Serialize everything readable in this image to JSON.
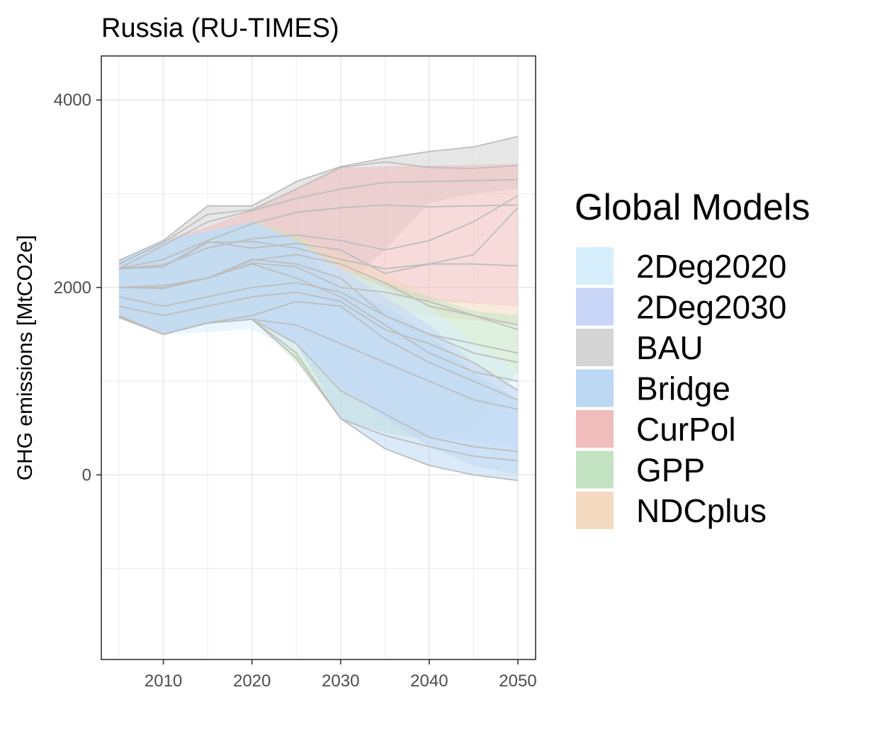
{
  "chart_data": {
    "type": "area",
    "title": "Russia (RU-TIMES)",
    "xlabel": "",
    "ylabel": "GHG emissions [MtCO2e]",
    "xlim": [
      2003,
      2052
    ],
    "ylim": [
      -1970,
      4470
    ],
    "x_ticks": [
      2010,
      2020,
      2030,
      2040,
      2050
    ],
    "y_ticks": [
      0,
      2000,
      4000
    ],
    "grid": true,
    "legend_title": "Global Models",
    "legend_position": "right",
    "colors": {
      "2Deg2020": "#d7eefc",
      "2Deg2030": "#c9d6f7",
      "BAU": "#d4d4d4",
      "Bridge": "#bcd8f2",
      "CurPol": "#f0bcbc",
      "GPP": "#c3e3c3",
      "NDCplus": "#f2d9bf"
    },
    "series": [
      {
        "name": "BAU",
        "color": "#d4d4d4",
        "x": [
          2005,
          2010,
          2015,
          2020,
          2025,
          2030,
          2035,
          2040,
          2045,
          2050
        ],
        "upper": [
          2290,
          2500,
          2870,
          2870,
          3130,
          3290,
          3380,
          3450,
          3500,
          3610
        ],
        "lower": [
          1680,
          1500,
          1620,
          1660,
          1860,
          1960,
          2400,
          2900,
          3000,
          3050
        ]
      },
      {
        "name": "CurPol",
        "color": "#f0bcbc",
        "x": [
          2005,
          2010,
          2015,
          2020,
          2025,
          2030,
          2035,
          2040,
          2045,
          2050
        ],
        "upper": [
          2290,
          2500,
          2650,
          2820,
          3050,
          3280,
          3290,
          3300,
          3310,
          3320
        ],
        "lower": [
          1680,
          1500,
          1620,
          1660,
          1860,
          1960,
          1900,
          1860,
          1830,
          1800
        ]
      },
      {
        "name": "NDCplus",
        "color": "#f2d9bf",
        "x": [
          2005,
          2010,
          2015,
          2020,
          2025,
          2030,
          2035,
          2040,
          2045,
          2050
        ],
        "upper": [
          2290,
          2500,
          2600,
          2700,
          2550,
          2350,
          2150,
          1900,
          1850,
          1800
        ],
        "lower": [
          1680,
          1500,
          1620,
          1660,
          1860,
          1900,
          1780,
          1700,
          1650,
          1600
        ]
      },
      {
        "name": "GPP",
        "color": "#c3e3c3",
        "x": [
          2005,
          2010,
          2015,
          2020,
          2025,
          2030,
          2035,
          2040,
          2045,
          2050
        ],
        "upper": [
          2290,
          2500,
          2600,
          2700,
          2550,
          2200,
          2050,
          1900,
          1750,
          1700
        ],
        "lower": [
          1680,
          1500,
          1620,
          1660,
          1200,
          600,
          450,
          380,
          500,
          1100
        ]
      },
      {
        "name": "2Deg2020",
        "color": "#d7eefc",
        "x": [
          2005,
          2010,
          2015,
          2020,
          2025,
          2030,
          2035,
          2040,
          2045,
          2050
        ],
        "upper": [
          2290,
          2500,
          2600,
          2700,
          2500,
          2200,
          2000,
          1800,
          1400,
          1100
        ],
        "lower": [
          1680,
          1500,
          1520,
          1560,
          1300,
          900,
          600,
          400,
          350,
          300
        ]
      },
      {
        "name": "2Deg2030",
        "color": "#c9d6f7",
        "x": [
          2005,
          2010,
          2015,
          2020,
          2025,
          2030,
          2035,
          2040,
          2045,
          2050
        ],
        "upper": [
          2290,
          2500,
          2600,
          2700,
          2500,
          2200,
          1900,
          1600,
          1200,
          900
        ],
        "lower": [
          1680,
          1500,
          1620,
          1660,
          1400,
          950,
          600,
          300,
          100,
          0
        ]
      },
      {
        "name": "Bridge",
        "color": "#bcd8f2",
        "x": [
          2005,
          2010,
          2015,
          2020,
          2025,
          2030,
          2035,
          2040,
          2045,
          2050
        ],
        "upper": [
          2290,
          2500,
          2600,
          2700,
          2500,
          2000,
          1800,
          1500,
          1100,
          800
        ],
        "lower": [
          1680,
          1500,
          1620,
          1660,
          1400,
          600,
          280,
          100,
          0,
          -60
        ]
      }
    ],
    "scenario_lines": [
      {
        "x": [
          2005,
          2010,
          2015,
          2020,
          2025,
          2030,
          2035,
          2040,
          2045,
          2050
        ],
        "y": [
          2290,
          2500,
          2870,
          2870,
          3130,
          3290,
          3380,
          3450,
          3500,
          3610
        ]
      },
      {
        "x": [
          2005,
          2010,
          2015,
          2020,
          2025,
          2030,
          2035,
          2040,
          2045,
          2050
        ],
        "y": [
          2250,
          2480,
          2780,
          2830,
          3050,
          3280,
          3340,
          3280,
          3270,
          3300
        ]
      },
      {
        "x": [
          2005,
          2010,
          2015,
          2020,
          2025,
          2030,
          2035,
          2040,
          2045,
          2050
        ],
        "y": [
          2200,
          2450,
          2700,
          2820,
          2950,
          3050,
          3120,
          3130,
          3140,
          3150
        ]
      },
      {
        "x": [
          2005,
          2010,
          2015,
          2020,
          2025,
          2030,
          2035,
          2040,
          2045,
          2050
        ],
        "y": [
          2200,
          2300,
          2500,
          2680,
          2800,
          2850,
          2880,
          2860,
          2870,
          2880
        ]
      },
      {
        "x": [
          2005,
          2010,
          2015,
          2020,
          2025,
          2030,
          2035,
          2040,
          2045,
          2050
        ],
        "y": [
          2200,
          2240,
          2420,
          2520,
          2560,
          2500,
          2400,
          2500,
          2700,
          2980
        ]
      },
      {
        "x": [
          2005,
          2010,
          2015,
          2020,
          2025,
          2030,
          2035,
          2040,
          2045,
          2050
        ],
        "y": [
          2200,
          2220,
          2490,
          2420,
          2470,
          2400,
          2150,
          2250,
          2350,
          2850
        ]
      },
      {
        "x": [
          2005,
          2010,
          2015,
          2020,
          2025,
          2030,
          2035,
          2040,
          2045,
          2050
        ],
        "y": [
          2200,
          2220,
          2480,
          2490,
          2420,
          2300,
          2200,
          2250,
          2250,
          2230
        ]
      },
      {
        "x": [
          2005,
          2010,
          2015,
          2020,
          2025,
          2030,
          2035,
          2040,
          2045,
          2050
        ],
        "y": [
          2000,
          2020,
          2100,
          2290,
          2350,
          2250,
          2050,
          1800,
          1700,
          1600
        ]
      },
      {
        "x": [
          2005,
          2010,
          2015,
          2020,
          2025,
          2030,
          2035,
          2040,
          2045,
          2050
        ],
        "y": [
          2000,
          2000,
          2100,
          2260,
          2220,
          2000,
          1950,
          1850,
          1700,
          1550
        ]
      },
      {
        "x": [
          2005,
          2010,
          2015,
          2020,
          2025,
          2030,
          2035,
          2040,
          2045,
          2050
        ],
        "y": [
          2000,
          1990,
          2100,
          2300,
          2250,
          2100,
          1700,
          1500,
          1400,
          1300
        ]
      },
      {
        "x": [
          2005,
          2010,
          2015,
          2020,
          2025,
          2030,
          2035,
          2040,
          2045,
          2050
        ],
        "y": [
          2000,
          1990,
          2100,
          2250,
          2100,
          1900,
          1600,
          1300,
          1100,
          1000
        ]
      },
      {
        "x": [
          2005,
          2010,
          2015,
          2020,
          2025,
          2030,
          2035,
          2040,
          2045,
          2050
        ],
        "y": [
          1900,
          1800,
          1900,
          2000,
          2050,
          1950,
          1700,
          1500,
          1300,
          1200
        ]
      },
      {
        "x": [
          2005,
          2010,
          2015,
          2020,
          2025,
          2030,
          2035,
          2040,
          2045,
          2050
        ],
        "y": [
          1800,
          1700,
          1800,
          1900,
          1950,
          1850,
          1550,
          1400,
          1200,
          900
        ]
      },
      {
        "x": [
          2005,
          2010,
          2015,
          2020,
          2025,
          2030,
          2035,
          2040,
          2045,
          2050
        ],
        "y": [
          1700,
          1500,
          1620,
          1700,
          1850,
          1800,
          1450,
          1200,
          1000,
          800
        ]
      },
      {
        "x": [
          2005,
          2010,
          2015,
          2020,
          2025,
          2030,
          2035,
          2040,
          2045,
          2050
        ],
        "y": [
          1680,
          1500,
          1620,
          1660,
          1600,
          1400,
          1200,
          1000,
          800,
          700
        ]
      },
      {
        "x": [
          2005,
          2010,
          2015,
          2020,
          2025,
          2030,
          2035,
          2040,
          2045,
          2050
        ],
        "y": [
          1680,
          1500,
          1620,
          1660,
          1400,
          900,
          650,
          400,
          300,
          250
        ]
      },
      {
        "x": [
          2005,
          2010,
          2015,
          2020,
          2025,
          2030,
          2035,
          2040,
          2045,
          2050
        ],
        "y": [
          1680,
          1500,
          1620,
          1660,
          1300,
          600,
          420,
          300,
          200,
          150
        ]
      },
      {
        "x": [
          2005,
          2010,
          2015,
          2020,
          2025,
          2030,
          2035,
          2040,
          2045,
          2050
        ],
        "y": [
          1680,
          1500,
          1620,
          1660,
          1250,
          600,
          280,
          100,
          0,
          -60
        ]
      }
    ]
  }
}
